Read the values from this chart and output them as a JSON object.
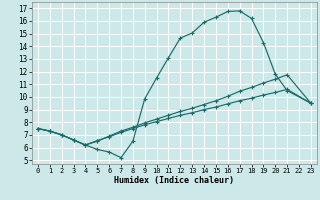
{
  "xlabel": "Humidex (Indice chaleur)",
  "bg_color": "#cce8e8",
  "grid_color": "#ffffff",
  "line_color": "#1a6b6b",
  "xlim": [
    -0.5,
    23.5
  ],
  "ylim": [
    4.7,
    17.5
  ],
  "xticks": [
    0,
    1,
    2,
    3,
    4,
    5,
    6,
    7,
    8,
    9,
    10,
    11,
    12,
    13,
    14,
    15,
    16,
    17,
    18,
    19,
    20,
    21,
    22,
    23
  ],
  "yticks": [
    5,
    6,
    7,
    8,
    9,
    10,
    11,
    12,
    13,
    14,
    15,
    16,
    17
  ],
  "curve1_x": [
    0,
    1,
    2,
    3,
    4,
    5,
    6,
    7,
    8,
    9,
    10,
    11,
    12,
    13,
    14,
    15,
    16,
    17,
    18,
    19,
    20,
    21,
    23
  ],
  "curve1_y": [
    7.5,
    7.3,
    7.0,
    6.6,
    6.2,
    5.85,
    5.65,
    5.2,
    6.5,
    9.85,
    11.5,
    13.1,
    14.65,
    15.05,
    15.9,
    16.3,
    16.75,
    16.8,
    16.2,
    14.3,
    11.8,
    10.5,
    9.5
  ],
  "curve2_x": [
    0,
    1,
    2,
    3,
    4,
    5,
    6,
    7,
    8,
    9,
    10,
    11,
    12,
    13,
    14,
    15,
    16,
    17,
    18,
    19,
    20,
    21,
    23
  ],
  "curve2_y": [
    7.5,
    7.3,
    7.0,
    6.6,
    6.2,
    6.5,
    6.9,
    7.3,
    7.6,
    7.95,
    8.25,
    8.55,
    8.85,
    9.1,
    9.4,
    9.7,
    10.05,
    10.45,
    10.75,
    11.1,
    11.4,
    11.75,
    9.5
  ],
  "curve3_x": [
    0,
    1,
    2,
    3,
    4,
    5,
    6,
    7,
    8,
    9,
    10,
    11,
    12,
    13,
    14,
    15,
    16,
    17,
    18,
    19,
    20,
    21,
    23
  ],
  "curve3_y": [
    7.5,
    7.3,
    7.0,
    6.6,
    6.2,
    6.55,
    6.85,
    7.2,
    7.5,
    7.8,
    8.05,
    8.3,
    8.55,
    8.75,
    9.0,
    9.2,
    9.45,
    9.7,
    9.9,
    10.15,
    10.35,
    10.6,
    9.5
  ]
}
